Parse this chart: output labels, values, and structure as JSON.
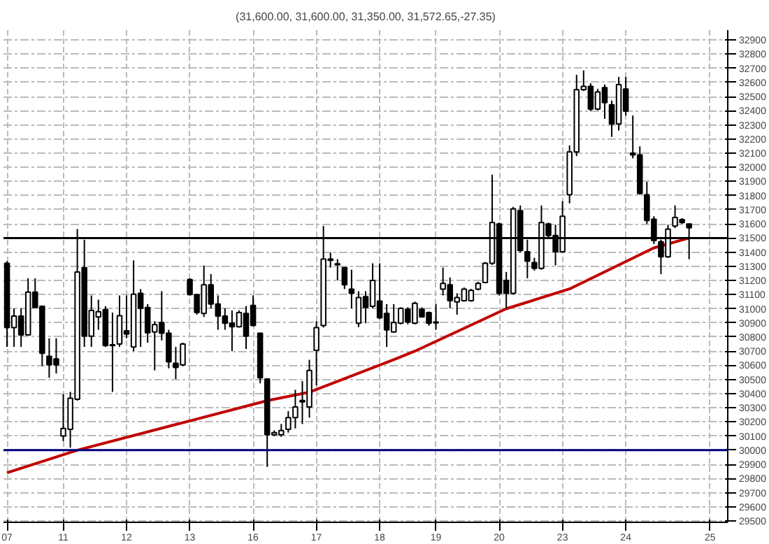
{
  "chart_data": {
    "type": "candlestick",
    "title": "(31,600.00, 31,600.00, 31,350.00, 31,572.65,-27.35)",
    "categories": [
      "07",
      null,
      null,
      null,
      null,
      null,
      null,
      null,
      "11",
      null,
      null,
      null,
      null,
      null,
      null,
      null,
      null,
      "12",
      null,
      null,
      null,
      null,
      null,
      null,
      null,
      null,
      "13",
      null,
      null,
      null,
      null,
      null,
      null,
      null,
      null,
      "16",
      null,
      null,
      null,
      null,
      null,
      null,
      null,
      null,
      "17",
      null,
      null,
      null,
      null,
      null,
      null,
      null,
      null,
      "18",
      null,
      null,
      null,
      null,
      null,
      null,
      null,
      "19",
      null,
      null,
      null,
      null,
      null,
      null,
      null,
      null,
      "20",
      null,
      null,
      null,
      null,
      null,
      null,
      null,
      null,
      "23",
      null,
      null,
      null,
      null,
      null,
      null,
      null,
      null,
      "24",
      null,
      null,
      null,
      null,
      null,
      null,
      null,
      null,
      null,
      null,
      null,
      "25"
    ],
    "ohlc": [
      [
        31321,
        31336,
        30730,
        30867
      ],
      [
        30867,
        31003,
        30730,
        30948
      ],
      [
        30948,
        31003,
        30730,
        30815
      ],
      [
        30815,
        31215,
        30815,
        31118
      ],
      [
        31118,
        31215,
        31003,
        31009
      ],
      [
        31018,
        31018,
        30594,
        30685
      ],
      [
        30664,
        30791,
        30512,
        30603
      ],
      [
        30645,
        30791,
        30542,
        30603
      ],
      [
        30100,
        30397,
        30064,
        30154
      ],
      [
        30148,
        30412,
        30018,
        30367
      ],
      [
        30360,
        31563,
        30350,
        31260
      ],
      [
        31291,
        31488,
        30730,
        30806
      ],
      [
        30806,
        31094,
        30730,
        30988
      ],
      [
        30942,
        31064,
        30851,
        30979
      ],
      [
        30994,
        31018,
        30730,
        30739
      ],
      [
        30745,
        30973,
        30412,
        30739
      ],
      [
        30751,
        31094,
        30730,
        30951
      ],
      [
        30845,
        31094,
        30791,
        30821
      ],
      [
        30730,
        31342,
        30700,
        31103
      ],
      [
        31109,
        31139,
        30730,
        31003
      ],
      [
        31009,
        31033,
        30760,
        30830
      ],
      [
        30836,
        30912,
        30564,
        30888
      ],
      [
        30903,
        31124,
        30776,
        30827
      ],
      [
        30827,
        30851,
        30579,
        30624
      ],
      [
        30615,
        30730,
        30503,
        30585
      ],
      [
        30603,
        30760,
        30594,
        30751
      ],
      [
        31206,
        31215,
        31094,
        31100
      ],
      [
        31100,
        31100,
        30958,
        30973
      ],
      [
        30967,
        31306,
        30942,
        31170
      ],
      [
        31170,
        31245,
        31003,
        31033
      ],
      [
        31033,
        31094,
        30851,
        30948
      ],
      [
        30948,
        31003,
        30851,
        30897
      ],
      [
        30897,
        30988,
        30700,
        30873
      ],
      [
        30873,
        30988,
        30867,
        30973
      ],
      [
        30967,
        31018,
        30715,
        30806
      ],
      [
        31024,
        31094,
        30876,
        30882
      ],
      [
        30827,
        30827,
        30473,
        30512
      ],
      [
        30503,
        30503,
        29882,
        30109
      ],
      [
        30109,
        30140,
        30100,
        30124
      ],
      [
        30109,
        30185,
        30094,
        30139
      ],
      [
        30148,
        30276,
        30124,
        30230
      ],
      [
        30230,
        30427,
        30154,
        30306
      ],
      [
        30342,
        30488,
        30185,
        30351
      ],
      [
        30306,
        30639,
        30230,
        30564
      ],
      [
        30706,
        30912,
        30458,
        30867
      ],
      [
        30882,
        31585,
        30867,
        31351
      ],
      [
        31351,
        31397,
        31291,
        31342
      ],
      [
        31318,
        31351,
        31200,
        31312
      ],
      [
        31291,
        31291,
        31139,
        31170
      ],
      [
        31139,
        31276,
        31003,
        31109
      ],
      [
        30897,
        31124,
        30870,
        31079
      ],
      [
        31085,
        31124,
        30897,
        31009
      ],
      [
        31018,
        31321,
        31003,
        31200
      ],
      [
        31054,
        31321,
        30927,
        30936
      ],
      [
        30967,
        31033,
        30730,
        30851
      ],
      [
        30836,
        31033,
        30830,
        30903
      ],
      [
        30897,
        31010,
        30890,
        31003
      ],
      [
        30997,
        31010,
        30890,
        30906
      ],
      [
        30897,
        31050,
        30890,
        31039
      ],
      [
        30997,
        31010,
        30940,
        30942
      ],
      [
        30973,
        30980,
        30880,
        30897
      ],
      [
        30906,
        31033,
        30851,
        30900
      ],
      [
        31139,
        31291,
        31094,
        31179
      ],
      [
        31170,
        31221,
        31003,
        31057
      ],
      [
        31048,
        31109,
        30958,
        31079
      ],
      [
        31057,
        31150,
        31050,
        31139
      ],
      [
        31057,
        31140,
        31050,
        31130
      ],
      [
        31139,
        31190,
        31130,
        31179
      ],
      [
        31185,
        31330,
        31180,
        31321
      ],
      [
        31321,
        31948,
        31310,
        31609
      ],
      [
        31600,
        31609,
        31094,
        31109
      ],
      [
        31200,
        31260,
        31003,
        31109
      ],
      [
        31109,
        31720,
        31100,
        31706
      ],
      [
        31694,
        31730,
        31397,
        31412
      ],
      [
        31403,
        31488,
        31215,
        31336
      ],
      [
        31327,
        31360,
        31270,
        31285
      ],
      [
        31285,
        31730,
        31276,
        31609
      ],
      [
        31600,
        31609,
        31500,
        31518
      ],
      [
        31518,
        31594,
        31306,
        31403
      ],
      [
        31403,
        31760,
        31397,
        31654
      ],
      [
        31806,
        32154,
        31745,
        32109
      ],
      [
        32109,
        32654,
        32079,
        32548
      ],
      [
        32548,
        32685,
        32540,
        32572
      ],
      [
        32572,
        32594,
        32397,
        32412
      ],
      [
        32412,
        32554,
        32403,
        32533
      ],
      [
        32563,
        32585,
        32342,
        32457
      ],
      [
        32442,
        32472,
        32215,
        32306
      ],
      [
        32306,
        32639,
        32260,
        32585
      ],
      [
        32554,
        32639,
        32366,
        32397
      ],
      [
        32100,
        32366,
        32063,
        32088
      ],
      [
        32088,
        32148,
        31806,
        31815
      ],
      [
        31806,
        31897,
        31600,
        31624
      ],
      [
        31633,
        31654,
        31457,
        31482
      ],
      [
        31473,
        31488,
        31245,
        31367
      ],
      [
        31367,
        31594,
        31360,
        31563
      ],
      [
        31585,
        31730,
        31570,
        31645
      ],
      [
        31630,
        31640,
        31600,
        31609
      ],
      [
        31600,
        31600,
        31350,
        31572.65
      ],
      null,
      null,
      null
    ],
    "series": [
      {
        "type": "line",
        "color": "#c00000",
        "values": [
          29840,
          null,
          null,
          null,
          null,
          null,
          null,
          null,
          null,
          null,
          30000,
          null,
          null,
          null,
          null,
          null,
          null,
          null,
          null,
          null,
          null,
          null,
          null,
          null,
          null,
          null,
          null,
          null,
          null,
          null,
          null,
          null,
          null,
          null,
          null,
          null,
          null,
          30350,
          null,
          null,
          null,
          null,
          null,
          30410,
          null,
          null,
          null,
          null,
          null,
          null,
          null,
          null,
          null,
          null,
          null,
          30640,
          null,
          null,
          30700,
          null,
          null,
          null,
          null,
          null,
          null,
          null,
          null,
          null,
          null,
          null,
          null,
          31000,
          null,
          null,
          null,
          null,
          null,
          null,
          null,
          null,
          31140,
          null,
          null,
          null,
          null,
          null,
          null,
          null,
          null,
          null,
          null,
          null,
          31430,
          null,
          null,
          null,
          null,
          31500,
          null,
          null,
          null
        ]
      }
    ],
    "ref_lines": [
      {
        "axis": "y",
        "value": 31500,
        "color": "#000000"
      },
      {
        "axis": "y",
        "value": 30000,
        "color": "#000080"
      }
    ],
    "ylim": [
      29490,
      32970
    ],
    "yticks": [
      29500,
      29600,
      29700,
      29800,
      29900,
      30000,
      30100,
      30200,
      30300,
      30400,
      30500,
      30600,
      30700,
      30800,
      30900,
      31000,
      31100,
      31200,
      31300,
      31400,
      31500,
      31600,
      31700,
      31800,
      31900,
      32000,
      32100,
      32200,
      32300,
      32400,
      32500,
      32600,
      32700,
      32800,
      32900
    ],
    "grid": true
  }
}
